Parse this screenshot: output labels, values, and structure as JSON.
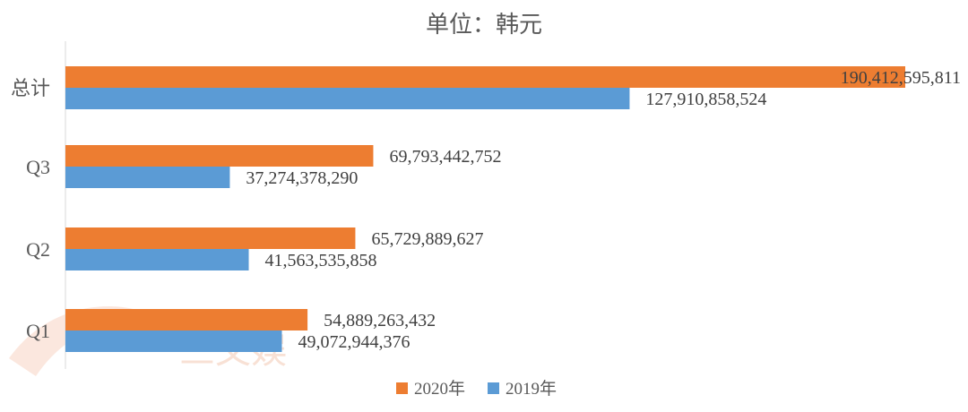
{
  "chart_data": {
    "type": "bar",
    "orientation": "horizontal",
    "title": "单位：韩元",
    "categories": [
      "总计",
      "Q3",
      "Q2",
      "Q1"
    ],
    "series": [
      {
        "name": "2020年",
        "color": "#ED7D31",
        "values": [
          190412595811,
          69793442752,
          65729889627,
          54889263432
        ],
        "labels": [
          "190,412,595,811",
          "69,793,442,752",
          "65,729,889,627",
          "54,889,263,432"
        ]
      },
      {
        "name": "2019年",
        "color": "#5B9BD5",
        "values": [
          127910858524,
          37274378290,
          41563535858,
          49072944376
        ],
        "labels": [
          "127,910,858,524",
          "37,274,378,290",
          "41,563,535,858",
          "49,072,944,376"
        ]
      }
    ],
    "xlim": [
      0,
      190412595811
    ],
    "grid": false,
    "legend": "bottom",
    "watermark": "三文娱"
  }
}
